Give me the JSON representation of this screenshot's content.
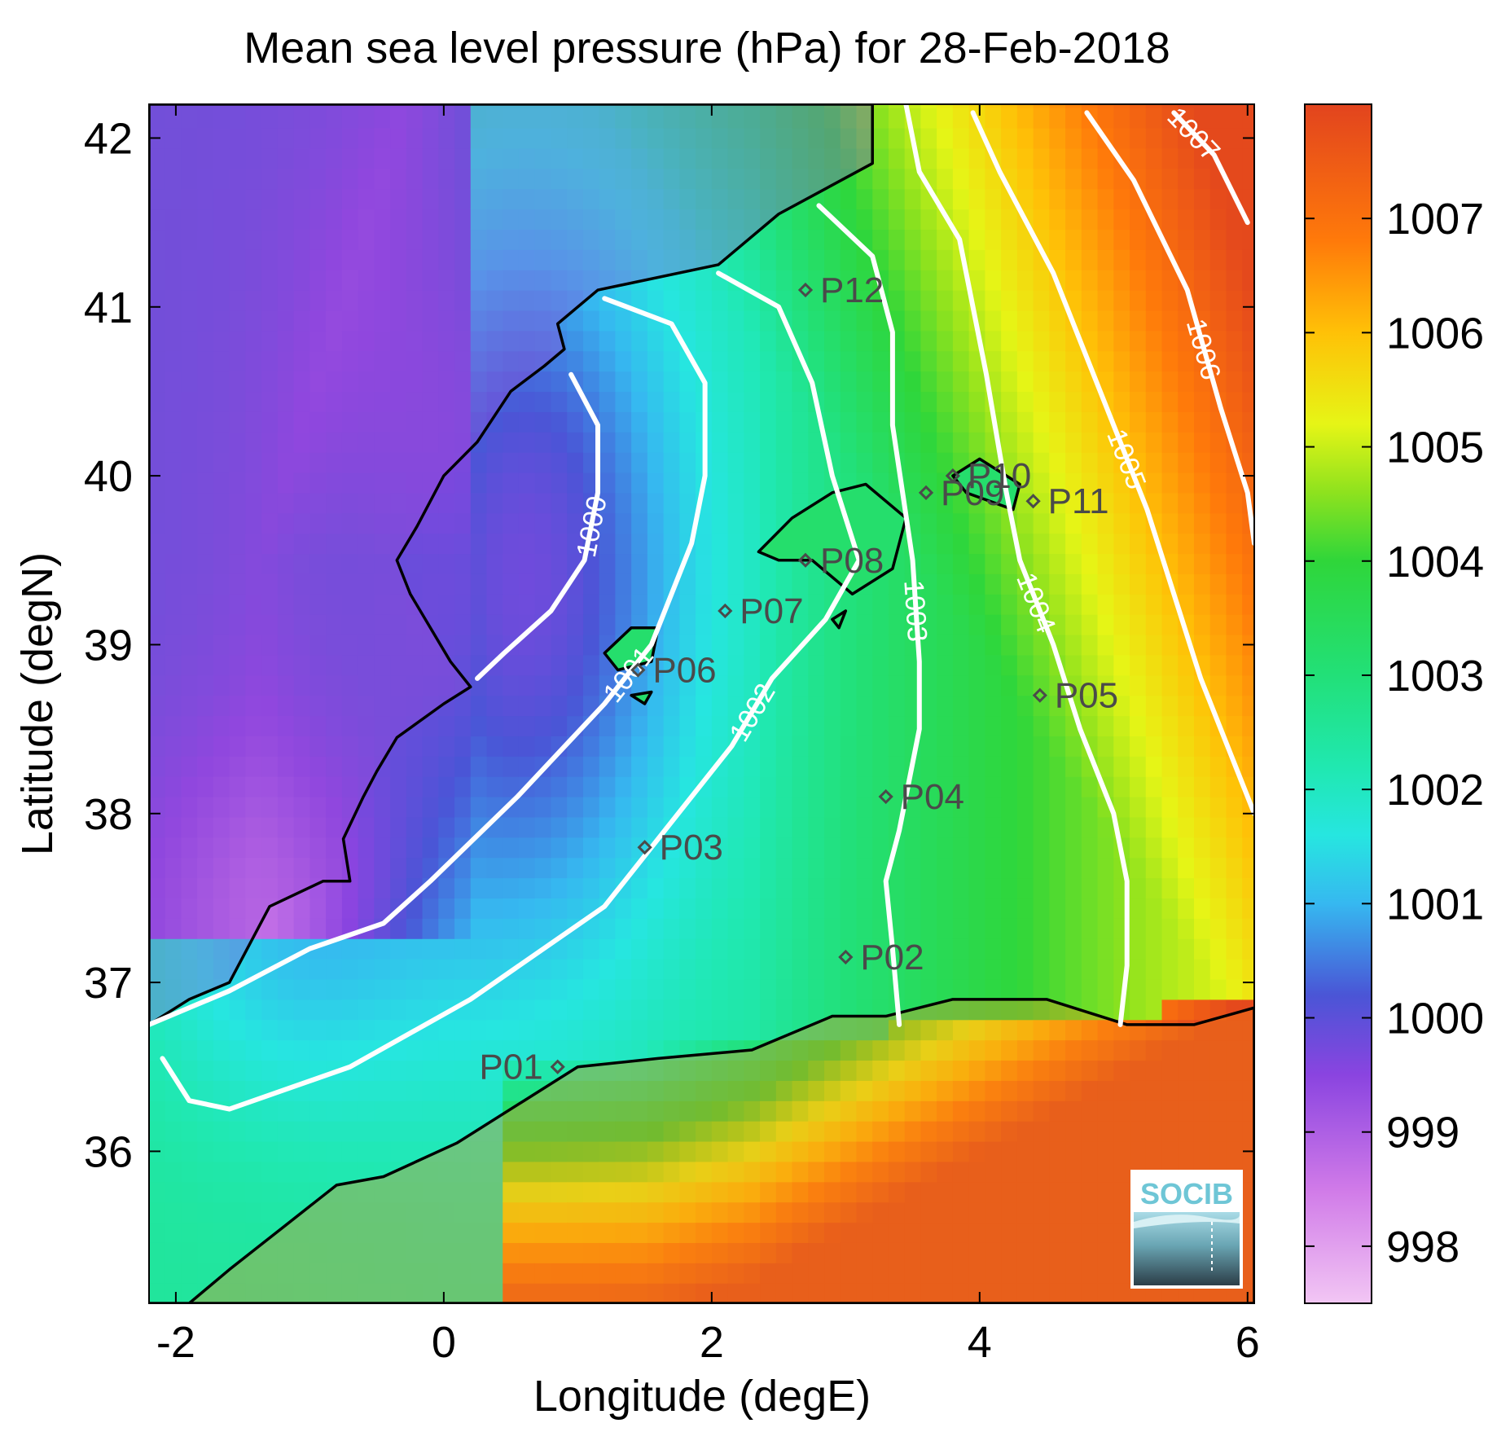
{
  "title": "Mean sea level pressure (hPa) for 28-Feb-2018",
  "xlabel": "Longitude (degE)",
  "ylabel": "Latitude (degN)",
  "logo_text": "SOCIB",
  "x_axis": {
    "range": [
      -2.2,
      6.05
    ],
    "ticks": [
      -2,
      0,
      2,
      4,
      6
    ],
    "tick_labels": [
      "-2",
      "0",
      "2",
      "4",
      "6"
    ]
  },
  "y_axis": {
    "range": [
      35.1,
      42.2
    ],
    "ticks": [
      36,
      37,
      38,
      39,
      40,
      41,
      42
    ],
    "tick_labels": [
      "36",
      "37",
      "38",
      "39",
      "40",
      "41",
      "42"
    ]
  },
  "colorbar": {
    "range": [
      997.5,
      1008.0
    ],
    "ticks": [
      998,
      999,
      1000,
      1001,
      1002,
      1003,
      1004,
      1005,
      1006,
      1007
    ],
    "tick_labels": [
      "998",
      "999",
      "1000",
      "1001",
      "1002",
      "1003",
      "1004",
      "1005",
      "1006",
      "1007"
    ],
    "colormap": [
      [
        997.5,
        "#f2c6f4"
      ],
      [
        998.5,
        "#d07ae8"
      ],
      [
        999.5,
        "#8a44e0"
      ],
      [
        1000.2,
        "#4a55d6"
      ],
      [
        1001.0,
        "#36b8f0"
      ],
      [
        1001.6,
        "#26e6e0"
      ],
      [
        1002.2,
        "#20e8b0"
      ],
      [
        1003.0,
        "#22e078"
      ],
      [
        1004.0,
        "#2fd63a"
      ],
      [
        1004.6,
        "#8ee21e"
      ],
      [
        1005.2,
        "#e6f516"
      ],
      [
        1006.0,
        "#ffc107"
      ],
      [
        1006.8,
        "#ff7a0a"
      ],
      [
        1008.0,
        "#e2441e"
      ]
    ]
  },
  "chart_data": {
    "type": "map",
    "title": "Mean sea level pressure (hPa) for 28-Feb-2018",
    "xlabel": "Longitude (degE)",
    "ylabel": "Latitude (degN)",
    "xlim": [
      -2.2,
      6.05
    ],
    "ylim": [
      35.1,
      42.2
    ],
    "units": "hPa",
    "contour_levels": [
      1000,
      1001,
      1002,
      1003,
      1004,
      1005,
      1006,
      1007
    ],
    "contours": [
      {
        "level": 1000,
        "points": [
          [
            0.95,
            40.6
          ],
          [
            1.15,
            40.3
          ],
          [
            1.15,
            39.9
          ],
          [
            1.05,
            39.5
          ],
          [
            0.8,
            39.2
          ],
          [
            0.45,
            38.95
          ],
          [
            0.25,
            38.8
          ]
        ]
      },
      {
        "level": 1001,
        "points": [
          [
            1.2,
            41.05
          ],
          [
            1.7,
            40.9
          ],
          [
            1.95,
            40.55
          ],
          [
            1.95,
            40.0
          ],
          [
            1.85,
            39.6
          ],
          [
            1.55,
            39.0
          ],
          [
            1.2,
            38.65
          ],
          [
            0.55,
            38.1
          ],
          [
            -0.1,
            37.6
          ],
          [
            -0.45,
            37.35
          ],
          [
            -1.0,
            37.2
          ],
          [
            -1.6,
            36.95
          ],
          [
            -2.2,
            36.75
          ]
        ]
      },
      {
        "level": 1002,
        "points": [
          [
            2.05,
            41.2
          ],
          [
            2.5,
            41.0
          ],
          [
            2.75,
            40.55
          ],
          [
            2.9,
            40.0
          ],
          [
            3.1,
            39.5
          ],
          [
            2.85,
            39.15
          ],
          [
            2.45,
            38.8
          ],
          [
            2.15,
            38.4
          ],
          [
            1.75,
            38.0
          ],
          [
            1.2,
            37.45
          ],
          [
            0.2,
            36.9
          ],
          [
            -0.7,
            36.5
          ],
          [
            -1.6,
            36.25
          ],
          [
            -1.9,
            36.3
          ],
          [
            -2.1,
            36.55
          ]
        ]
      },
      {
        "level": 1003,
        "points": [
          [
            2.8,
            41.6
          ],
          [
            3.2,
            41.3
          ],
          [
            3.35,
            40.85
          ],
          [
            3.35,
            40.3
          ],
          [
            3.5,
            39.5
          ],
          [
            3.55,
            38.9
          ],
          [
            3.55,
            38.5
          ],
          [
            3.4,
            37.9
          ],
          [
            3.3,
            37.6
          ],
          [
            3.35,
            37.2
          ],
          [
            3.4,
            36.75
          ]
        ]
      },
      {
        "level": 1004,
        "points": [
          [
            3.45,
            42.2
          ],
          [
            3.55,
            41.8
          ],
          [
            3.85,
            41.4
          ],
          [
            4.05,
            40.6
          ],
          [
            4.2,
            39.9
          ],
          [
            4.3,
            39.5
          ],
          [
            4.55,
            39.0
          ],
          [
            4.75,
            38.5
          ],
          [
            5.0,
            38.0
          ],
          [
            5.1,
            37.6
          ],
          [
            5.1,
            37.1
          ],
          [
            5.05,
            36.75
          ]
        ]
      },
      {
        "level": 1005,
        "points": [
          [
            3.95,
            42.15
          ],
          [
            4.15,
            41.8
          ],
          [
            4.55,
            41.2
          ],
          [
            4.95,
            40.4
          ],
          [
            5.25,
            39.8
          ],
          [
            5.45,
            39.3
          ],
          [
            5.65,
            38.8
          ],
          [
            5.85,
            38.4
          ],
          [
            6.05,
            38.0
          ]
        ]
      },
      {
        "level": 1006,
        "points": [
          [
            4.8,
            42.15
          ],
          [
            5.15,
            41.75
          ],
          [
            5.55,
            41.1
          ],
          [
            5.8,
            40.4
          ],
          [
            6.0,
            39.9
          ],
          [
            6.05,
            39.6
          ]
        ]
      },
      {
        "level": 1007,
        "points": [
          [
            5.45,
            42.15
          ],
          [
            5.75,
            41.9
          ],
          [
            6.0,
            41.5
          ]
        ]
      }
    ],
    "stations": [
      {
        "name": "P01",
        "lon": 0.85,
        "lat": 36.5
      },
      {
        "name": "P02",
        "lon": 3.0,
        "lat": 37.15
      },
      {
        "name": "P03",
        "lon": 1.5,
        "lat": 37.8
      },
      {
        "name": "P04",
        "lon": 3.3,
        "lat": 38.1
      },
      {
        "name": "P05",
        "lon": 4.45,
        "lat": 38.7
      },
      {
        "name": "P06",
        "lon": 1.45,
        "lat": 38.85
      },
      {
        "name": "P07",
        "lon": 2.1,
        "lat": 39.2
      },
      {
        "name": "P08",
        "lon": 2.7,
        "lat": 39.5
      },
      {
        "name": "P09",
        "lon": 3.6,
        "lat": 39.9
      },
      {
        "name": "P10",
        "lon": 3.8,
        "lat": 40.0
      },
      {
        "name": "P11",
        "lon": 4.4,
        "lat": 39.85
      },
      {
        "name": "P12",
        "lon": 2.7,
        "lat": 41.1
      }
    ],
    "pressure_field": {
      "west_land_low": 998,
      "valencia_gulf_min": 999.8,
      "balearic_sea": 1002.5,
      "east_sea": 1004,
      "northeast_corner": 1007.5,
      "algeria_land": 1007.5
    }
  }
}
